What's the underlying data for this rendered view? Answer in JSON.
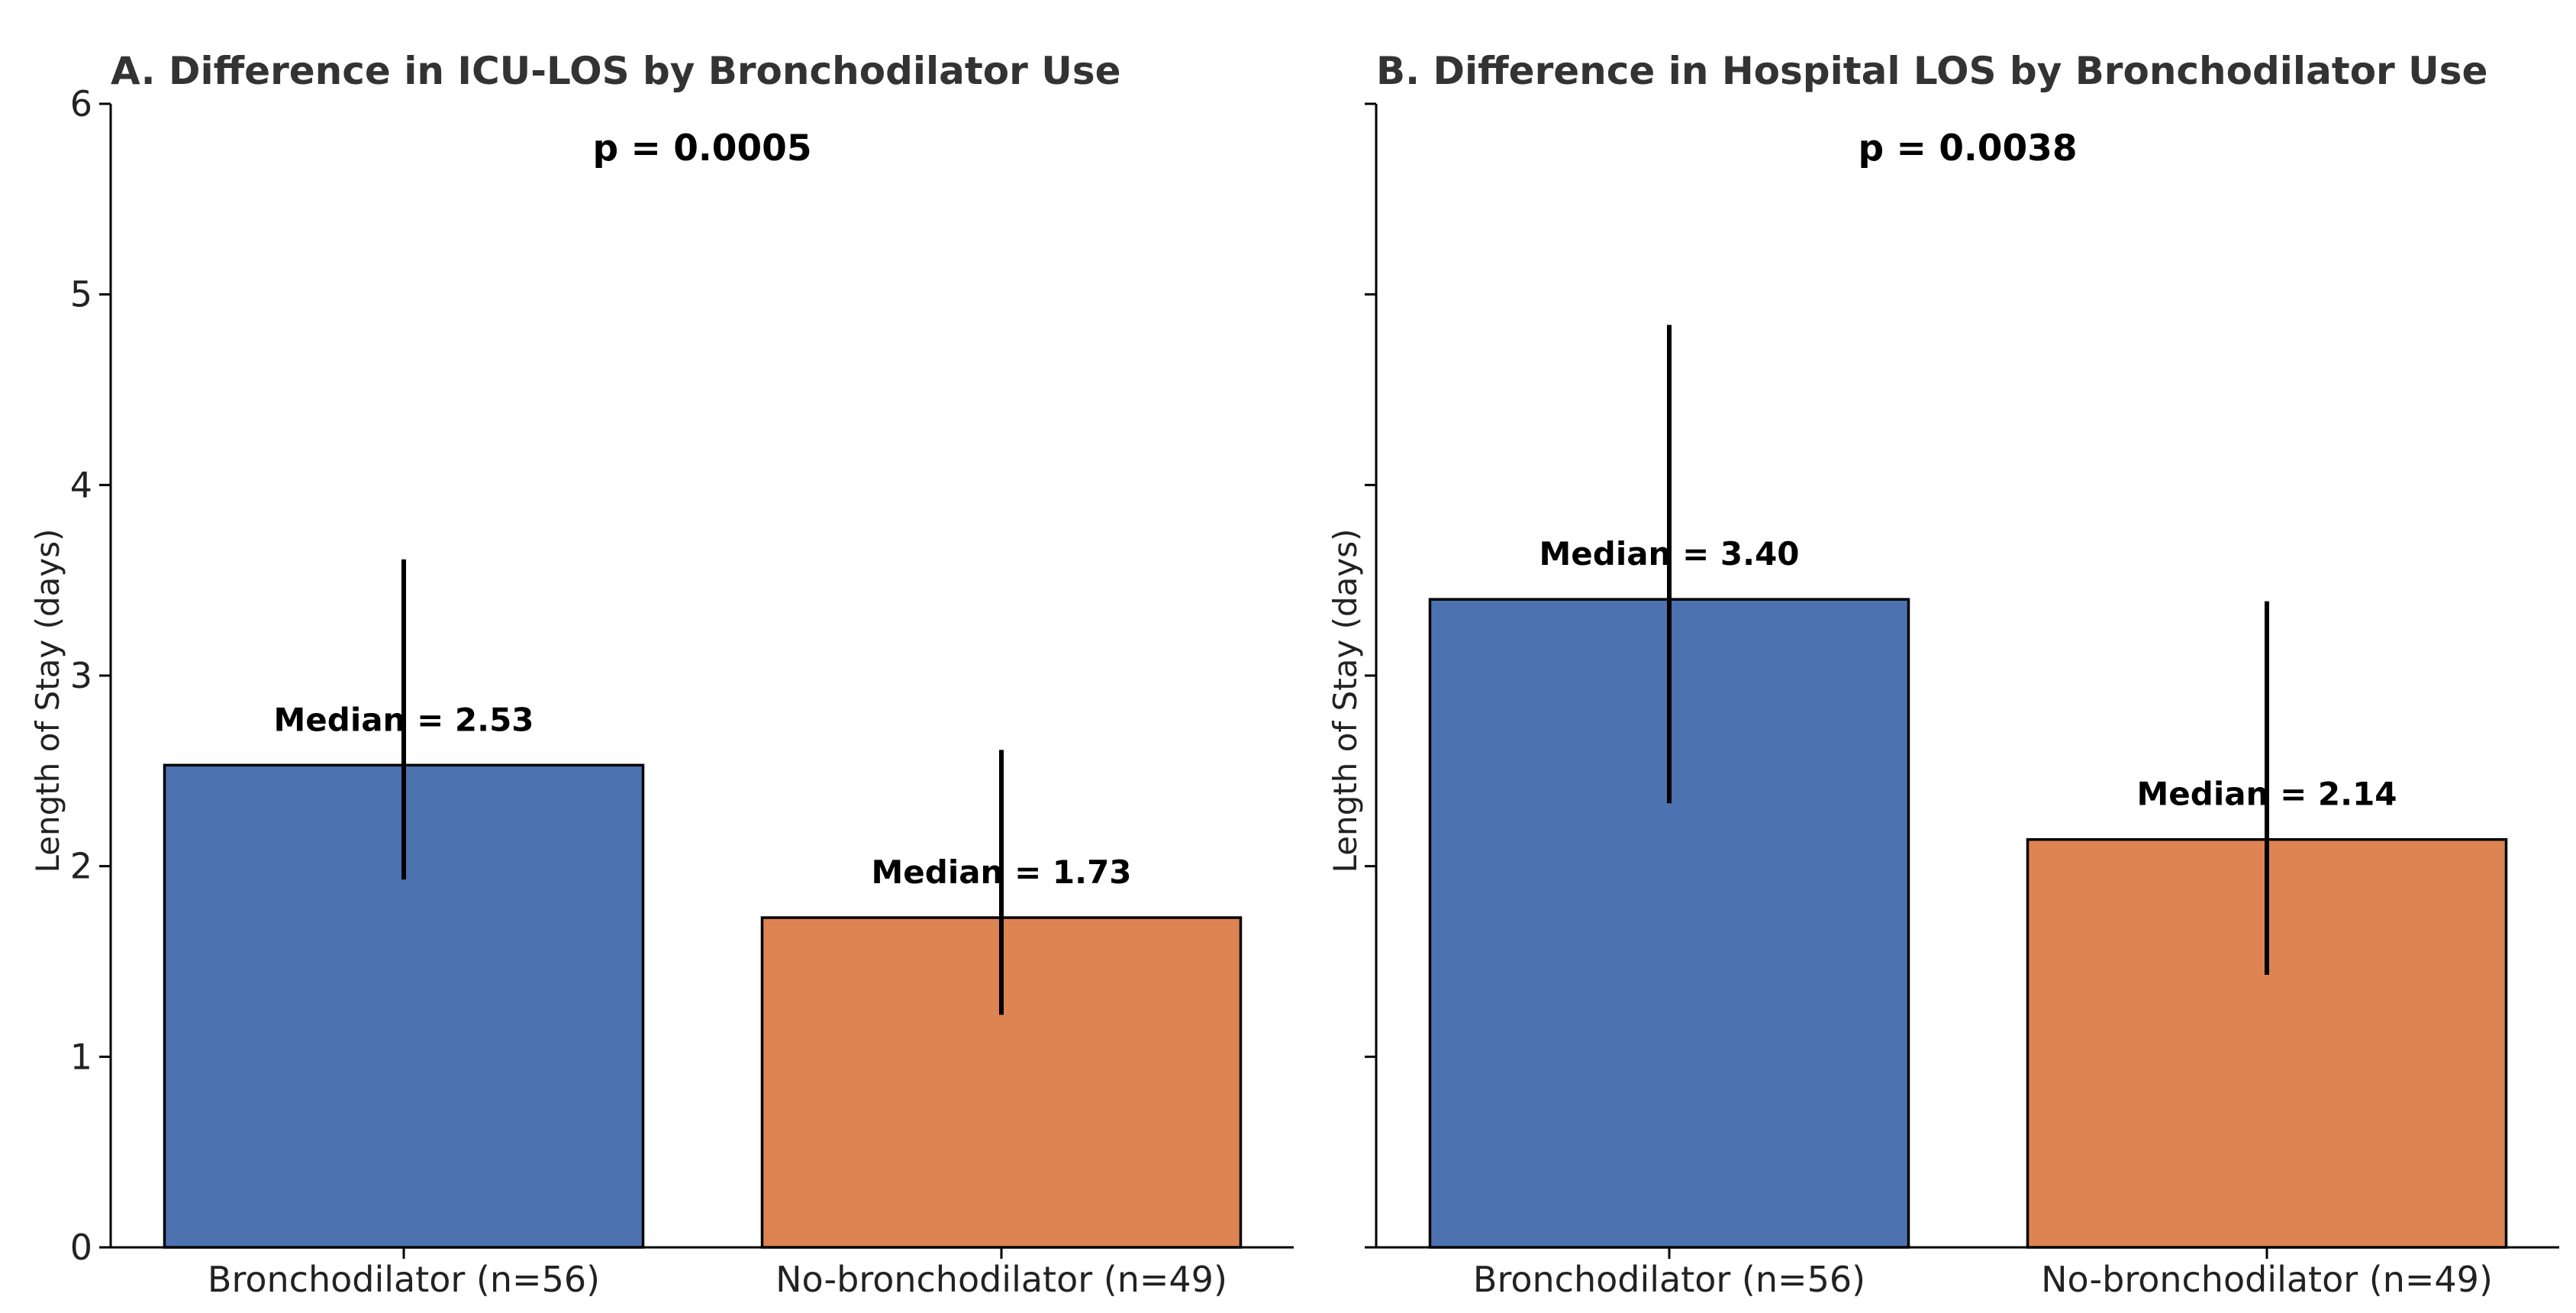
{
  "chart_data": [
    {
      "type": "bar",
      "title": "A. Difference in ICU-LOS by Bronchodilator Use",
      "annotation": "p = 0.0005",
      "categories": [
        "Bronchodilator (n=56)",
        "No-bronchodilator (n=49)"
      ],
      "values": [
        2.53,
        1.73
      ],
      "error_bars": [
        {
          "low": 1.93,
          "high": 3.61
        },
        {
          "low": 1.22,
          "high": 2.61
        }
      ],
      "data_labels": [
        "Median = 2.53",
        "Median = 1.73"
      ],
      "colors": [
        "#4c72b0",
        "#dd8452"
      ],
      "ylabel": "Length of Stay (days)",
      "ylim": [
        0,
        6
      ],
      "yticks": [
        0,
        1,
        2,
        3,
        4,
        5,
        6
      ],
      "ytick_labels": [
        "0",
        "1",
        "2",
        "3",
        "4",
        "5",
        "6"
      ],
      "grid": false
    },
    {
      "type": "bar",
      "title": "B. Difference in Hospital LOS by Bronchodilator Use",
      "annotation": "p = 0.0038",
      "categories": [
        "Bronchodilator (n=56)",
        "No-bronchodilator (n=49)"
      ],
      "values": [
        3.4,
        2.14
      ],
      "error_bars": [
        {
          "low": 2.33,
          "high": 4.84
        },
        {
          "low": 1.43,
          "high": 3.39
        }
      ],
      "data_labels": [
        "Median = 3.40",
        "Median = 2.14"
      ],
      "colors": [
        "#4c72b0",
        "#dd8452"
      ],
      "ylabel": "Length of Stay (days)",
      "ylim": [
        0,
        6
      ],
      "yticks": [
        0,
        1,
        2,
        3,
        4,
        5,
        6
      ],
      "ytick_labels": [],
      "grid": false
    }
  ]
}
